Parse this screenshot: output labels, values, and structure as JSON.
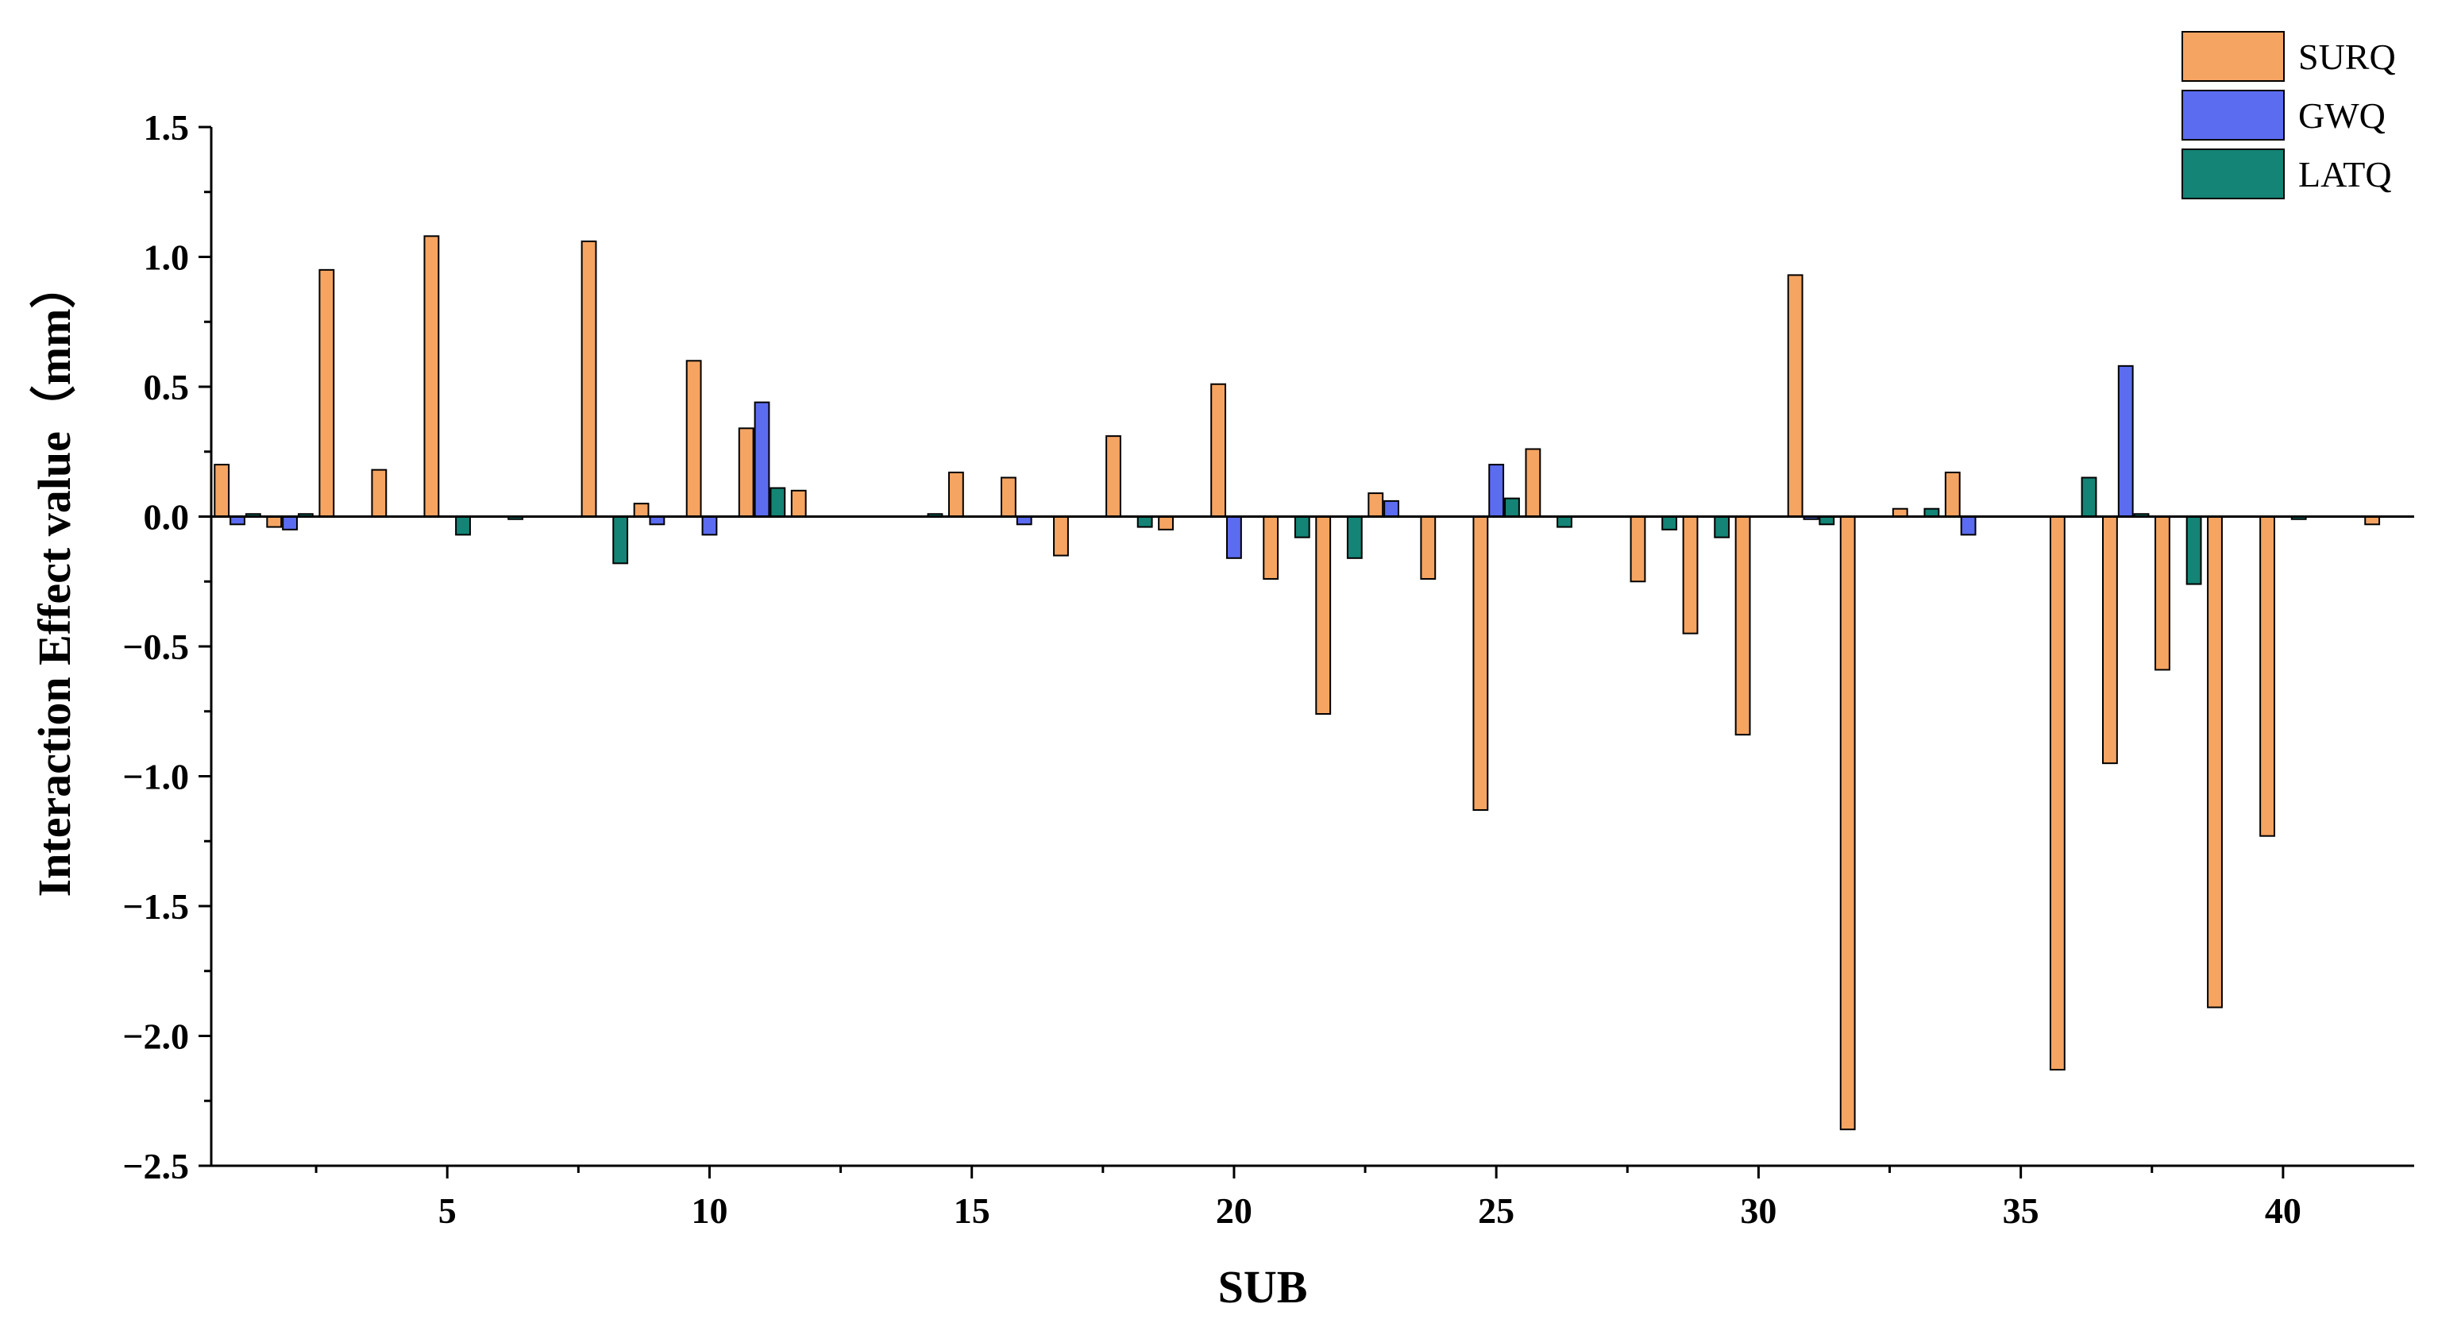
{
  "chart_data": {
    "type": "bar",
    "xlabel": "SUB",
    "ylabel": "Interaction Effect value（mm）",
    "ylim": [
      -2.5,
      1.5
    ],
    "xlim": [
      0.5,
      42.5
    ],
    "y_ticks": [
      1.5,
      1.0,
      0.5,
      0.0,
      -0.5,
      -1.0,
      -1.5,
      -2.0,
      -2.5
    ],
    "y_tick_labels": [
      "1.5",
      "1.0",
      "0.5",
      "0.0",
      "−0.5",
      "−1.0",
      "−1.5",
      "−2.0",
      "−2.5"
    ],
    "x_ticks": [
      5,
      10,
      15,
      20,
      25,
      30,
      35,
      40
    ],
    "x_tick_labels": [
      "5",
      "10",
      "15",
      "20",
      "25",
      "30",
      "35",
      "40"
    ],
    "grid": false,
    "legend_position": "top-right",
    "categories": [
      1,
      2,
      3,
      4,
      5,
      6,
      7,
      8,
      9,
      10,
      11,
      12,
      13,
      14,
      15,
      16,
      17,
      18,
      19,
      20,
      21,
      22,
      23,
      24,
      25,
      26,
      27,
      28,
      29,
      30,
      31,
      32,
      33,
      34,
      35,
      36,
      37,
      38,
      39,
      40,
      41,
      42
    ],
    "series": [
      {
        "name": "SURQ",
        "color": "#f5a462",
        "values": [
          0.2,
          -0.04,
          0.95,
          0.18,
          1.08,
          0.0,
          0.0,
          1.06,
          0.05,
          0.6,
          0.34,
          0.1,
          0.0,
          0.0,
          0.17,
          0.15,
          -0.15,
          0.31,
          -0.05,
          0.51,
          -0.24,
          -0.76,
          0.09,
          -0.24,
          -1.13,
          0.26,
          0.0,
          -0.25,
          -0.45,
          -0.84,
          0.93,
          -2.36,
          0.03,
          0.17,
          0.0,
          -2.13,
          -0.95,
          -0.59,
          -1.89,
          -1.23,
          0.0,
          -0.03
        ]
      },
      {
        "name": "GWQ",
        "color": "#5b6cf0",
        "values": [
          -0.03,
          -0.05,
          0.0,
          0.0,
          0.0,
          0.0,
          0.0,
          0.0,
          -0.03,
          -0.07,
          0.44,
          0.0,
          0.0,
          0.0,
          0.0,
          -0.03,
          0.0,
          0.0,
          0.0,
          -0.16,
          0.0,
          0.0,
          0.06,
          0.0,
          0.2,
          0.0,
          0.0,
          0.0,
          0.0,
          0.0,
          -0.01,
          0.0,
          0.0,
          -0.07,
          0.0,
          0.0,
          0.58,
          0.0,
          0.0,
          0.0,
          0.0,
          0.0
        ]
      },
      {
        "name": "LATQ",
        "color": "#138476",
        "values": [
          0.01,
          0.01,
          0.0,
          0.0,
          -0.07,
          -0.01,
          0.0,
          -0.18,
          0.0,
          0.0,
          0.11,
          0.0,
          0.0,
          0.01,
          0.0,
          0.0,
          0.0,
          -0.04,
          0.0,
          0.0,
          -0.08,
          -0.16,
          0.0,
          0.0,
          0.07,
          -0.04,
          0.0,
          -0.05,
          -0.08,
          0.0,
          -0.03,
          0.0,
          0.03,
          0.0,
          0.0,
          0.15,
          0.01,
          -0.26,
          0.0,
          -0.01,
          0.0,
          0.0
        ]
      }
    ]
  }
}
